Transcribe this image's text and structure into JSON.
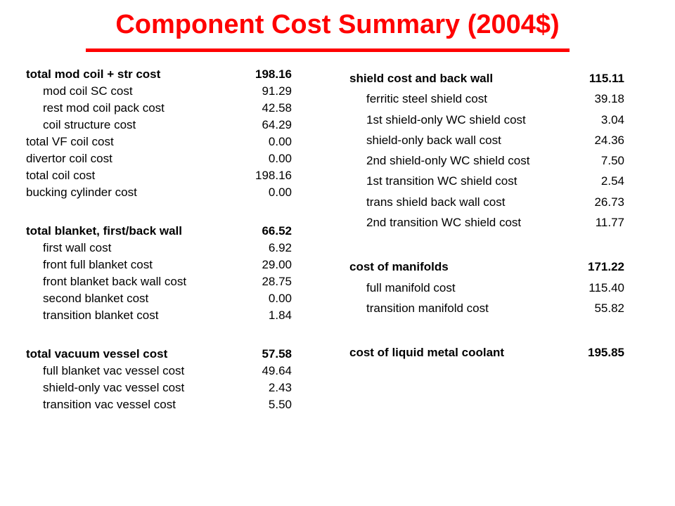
{
  "title": "Component Cost Summary (2004$)",
  "left_groups": [
    {
      "rows": [
        {
          "label": "total mod coil + str cost",
          "value": "198.16",
          "bold": true,
          "sub": false
        },
        {
          "label": "mod coil SC cost",
          "value": "91.29",
          "bold": false,
          "sub": true
        },
        {
          "label": "rest mod coil pack cost",
          "value": "42.58",
          "bold": false,
          "sub": true
        },
        {
          "label": "coil structure cost",
          "value": "64.29",
          "bold": false,
          "sub": true
        },
        {
          "label": "total VF coil cost",
          "value": "0.00",
          "bold": false,
          "sub": false
        },
        {
          "label": "divertor coil cost",
          "value": "0.00",
          "bold": false,
          "sub": false
        },
        {
          "label": "total coil cost",
          "value": "198.16",
          "bold": false,
          "sub": false
        },
        {
          "label": "bucking cylinder cost",
          "value": "0.00",
          "bold": false,
          "sub": false
        }
      ]
    },
    {
      "rows": [
        {
          "label": "total blanket, first/back wall",
          "value": "66.52",
          "bold": true,
          "sub": false
        },
        {
          "label": "first wall cost",
          "value": "6.92",
          "bold": false,
          "sub": true
        },
        {
          "label": "front full blanket cost",
          "value": "29.00",
          "bold": false,
          "sub": true
        },
        {
          "label": "front blanket back wall cost",
          "value": "28.75",
          "bold": false,
          "sub": true
        },
        {
          "label": "second blanket cost",
          "value": "0.00",
          "bold": false,
          "sub": true
        },
        {
          "label": "transition blanket cost",
          "value": "1.84",
          "bold": false,
          "sub": true
        }
      ]
    },
    {
      "rows": [
        {
          "label": "total vacuum vessel cost",
          "value": "57.58",
          "bold": true,
          "sub": false
        },
        {
          "label": "full blanket vac vessel cost",
          "value": "49.64",
          "bold": false,
          "sub": true
        },
        {
          "label": "shield-only vac vessel cost",
          "value": "2.43",
          "bold": false,
          "sub": true
        },
        {
          "label": "transition vac vessel cost",
          "value": "5.50",
          "bold": false,
          "sub": true
        }
      ]
    }
  ],
  "right_groups": [
    {
      "rows": [
        {
          "label": "shield cost and back wall",
          "value": "115.11",
          "bold": true,
          "sub": false
        },
        {
          "label": "ferritic steel shield cost",
          "value": "39.18",
          "bold": false,
          "sub": true
        },
        {
          "label": "1st shield-only WC shield cost",
          "value": "3.04",
          "bold": false,
          "sub": true
        },
        {
          "label": "shield-only back wall cost",
          "value": "24.36",
          "bold": false,
          "sub": true
        },
        {
          "label": "2nd shield-only WC shield cost",
          "value": "7.50",
          "bold": false,
          "sub": true
        },
        {
          "label": "1st transition WC shield cost",
          "value": "2.54",
          "bold": false,
          "sub": true
        },
        {
          "label": "trans shield back wall cost",
          "value": "26.73",
          "bold": false,
          "sub": true
        },
        {
          "label": "2nd transition WC shield cost",
          "value": "11.77",
          "bold": false,
          "sub": true
        }
      ]
    },
    {
      "rows": [
        {
          "label": "cost of manifolds",
          "value": "171.22",
          "bold": true,
          "sub": false
        },
        {
          "label": "full manifold cost",
          "value": "115.40",
          "bold": false,
          "sub": true
        },
        {
          "label": "transition manifold cost",
          "value": "55.82",
          "bold": false,
          "sub": true
        }
      ]
    },
    {
      "rows": [
        {
          "label": "cost of liquid metal coolant",
          "value": "195.85",
          "bold": true,
          "sub": false
        }
      ]
    }
  ],
  "colors": {
    "title": "#ff0000",
    "text": "#000000",
    "background": "#ffffff"
  }
}
